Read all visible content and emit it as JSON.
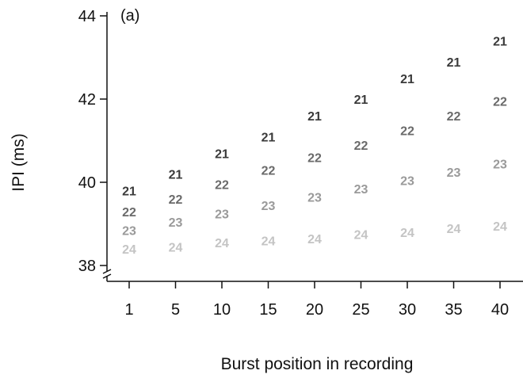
{
  "chart_data": {
    "type": "scatter",
    "panel_label": "(a)",
    "xlabel": "Burst position in recording",
    "ylabel": "IPI (ms)",
    "ylim": [
      38,
      44
    ],
    "y_ticks": [
      "38",
      "40",
      "42",
      "44"
    ],
    "y_tick_values": [
      38,
      40,
      42,
      44
    ],
    "categories": [
      "1",
      "5",
      "10",
      "15",
      "20",
      "25",
      "30",
      "35",
      "40"
    ],
    "grid": false,
    "axis_break": "y-axis at bottom",
    "series": [
      {
        "name": "21",
        "color": "#3a3a3a",
        "values": [
          39.8,
          40.2,
          40.7,
          41.1,
          41.6,
          42.0,
          42.5,
          42.9,
          43.4
        ]
      },
      {
        "name": "22",
        "color": "#6a6a6a",
        "values": [
          39.3,
          39.6,
          39.95,
          40.3,
          40.6,
          40.9,
          41.25,
          41.6,
          41.95
        ]
      },
      {
        "name": "23",
        "color": "#9a9a9a",
        "values": [
          38.85,
          39.05,
          39.25,
          39.45,
          39.65,
          39.85,
          40.05,
          40.25,
          40.45
        ]
      },
      {
        "name": "24",
        "color": "#c4c4c4",
        "values": [
          38.4,
          38.45,
          38.55,
          38.6,
          38.65,
          38.75,
          38.8,
          38.9,
          38.95
        ]
      }
    ]
  }
}
